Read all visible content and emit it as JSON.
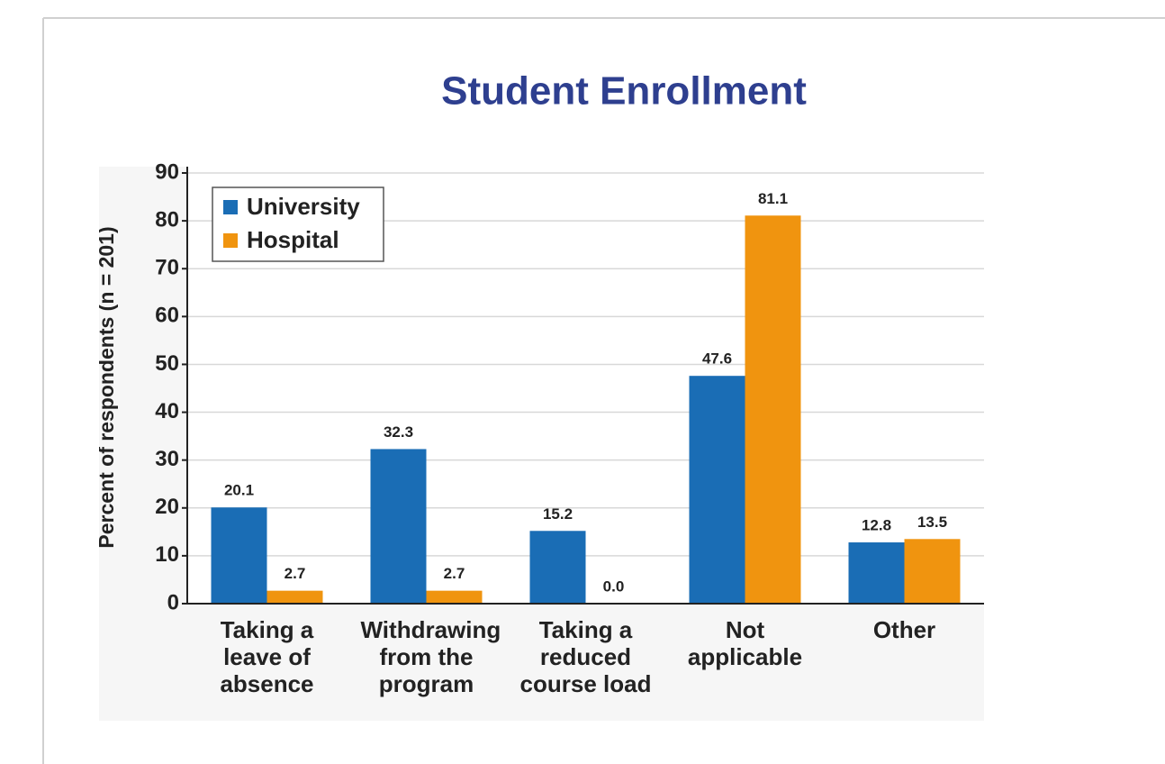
{
  "chart_data": {
    "type": "bar",
    "title": "Student Enrollment",
    "y_label": "Percent of respondents (n = 201)",
    "categories": [
      "Taking a leave of absence",
      "Withdrawing from the program",
      "Taking a reduced course load",
      "Not applicable",
      "Other"
    ],
    "series": [
      {
        "name": "University",
        "color": "#1a6db5",
        "values": [
          20.1,
          32.3,
          15.2,
          47.6,
          12.8
        ],
        "value_labels": [
          "20.1",
          "32.3",
          "15.2",
          "47.6",
          "12.8"
        ]
      },
      {
        "name": "Hospital",
        "color": "#f0940f",
        "values": [
          2.7,
          2.7,
          0,
          81.1,
          13.5
        ],
        "value_labels": [
          "2.7",
          "2.7",
          "0.0",
          "81.1",
          "13.5"
        ]
      }
    ],
    "ylim": [
      0,
      90
    ],
    "yticks": [
      0,
      10,
      20,
      30,
      40,
      50,
      60,
      70,
      80,
      90
    ],
    "grid": true,
    "legend": "upper left"
  }
}
